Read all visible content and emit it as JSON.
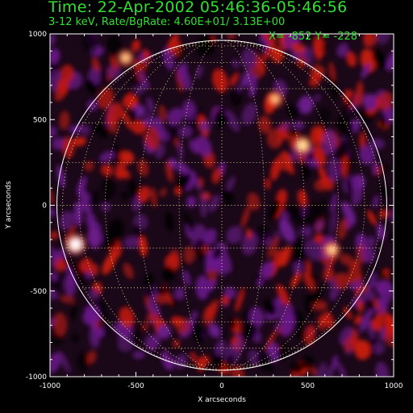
{
  "header": {
    "title": "Time: 22-Apr-2002 05:46:36-05:46:56",
    "subtitle": "3-12 keV, Rate/BgRate:  4.60E+01/  3.13E+00",
    "cursor_readout": "X= -852 Y= -228"
  },
  "colors": {
    "text_accent": "#2fe02f",
    "background": "#000000",
    "limb": "#ffffff",
    "grid": "#ffffaa",
    "map_low": "#000000",
    "map_purple": "#6a1a8a",
    "map_red": "#c41a10",
    "map_hot": "#ffffb0"
  },
  "chart_data": {
    "type": "heatmap",
    "xlabel": "X arcseconds",
    "ylabel": "Y arcseconds",
    "xlim": [
      -1000,
      1000
    ],
    "ylim": [
      -1000,
      1000
    ],
    "x_ticks": [
      -1000,
      -500,
      0,
      500,
      1000
    ],
    "y_ticks": [
      -1000,
      -500,
      0,
      500,
      1000
    ],
    "x_tick_labels": [
      "-1000",
      "-500",
      "0",
      "500",
      "1000"
    ],
    "y_tick_labels": [
      "-1000",
      "-500",
      "0",
      "500",
      "1000"
    ],
    "solar_limb_radius_arcsec": 960,
    "heliographic_grid": true,
    "sources": [
      {
        "x": -852,
        "y": -228,
        "intensity": 1.0
      },
      {
        "x": 470,
        "y": 350,
        "intensity": 0.75
      },
      {
        "x": 640,
        "y": -260,
        "intensity": 0.55
      },
      {
        "x": -560,
        "y": 860,
        "intensity": 0.5
      },
      {
        "x": 310,
        "y": 620,
        "intensity": 0.45
      }
    ]
  }
}
